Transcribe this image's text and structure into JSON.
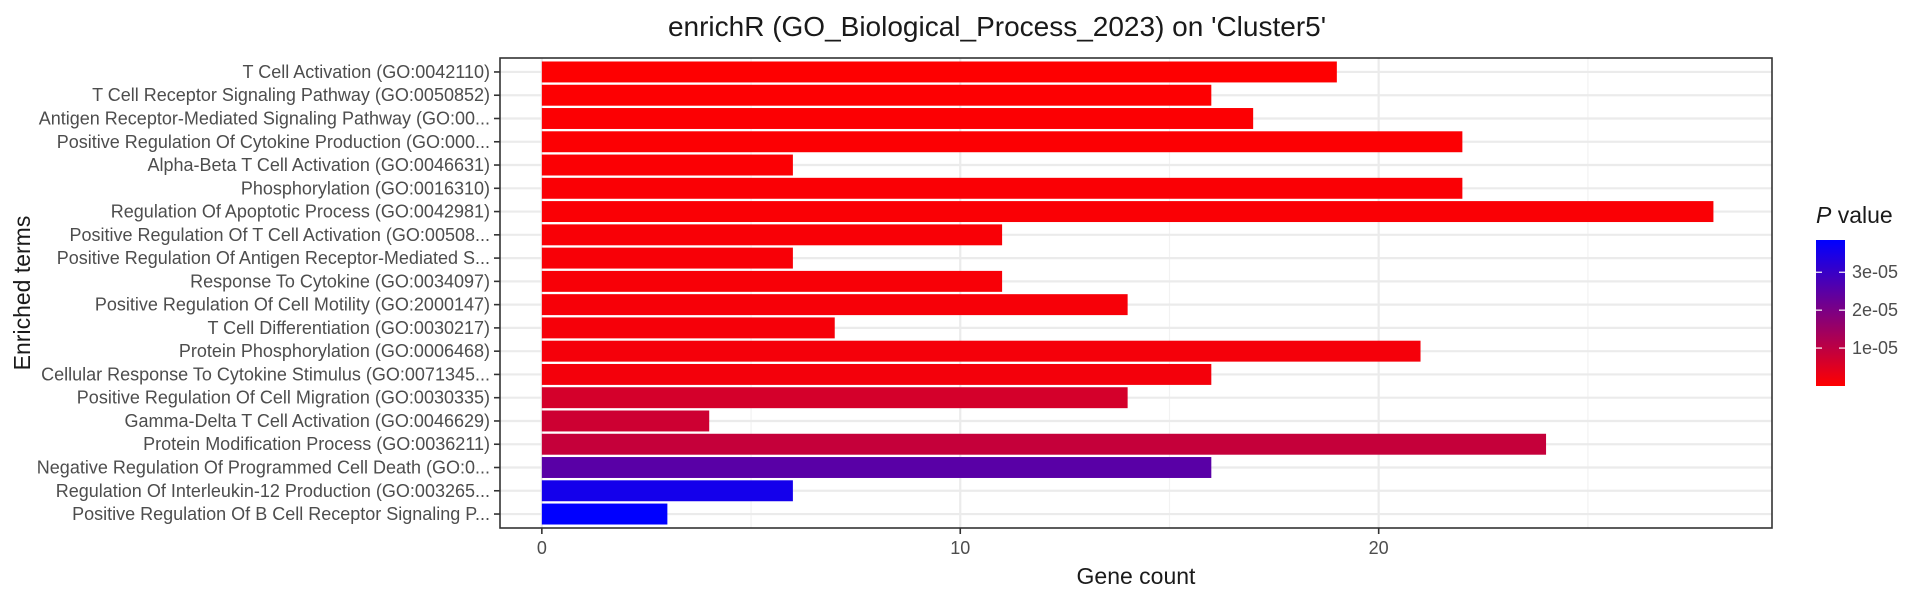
{
  "chart_data": {
    "type": "bar",
    "orientation": "horizontal",
    "title": "enrichR (GO_Biological_Process_2023) on 'Cluster5'",
    "xlabel": "Gene count",
    "ylabel": "Enriched terms",
    "xlim": [
      -1,
      29.4
    ],
    "xticks": [
      0,
      10,
      20
    ],
    "grid": true,
    "legend": {
      "title_italic": "P",
      "title_rest": " value",
      "placement": "right",
      "low_color": "#ff0000",
      "high_color": "#0000ff",
      "range": [
        0,
        3.85e-05
      ],
      "ticks": [
        {
          "value": 1e-05,
          "label": "1e-05"
        },
        {
          "value": 2e-05,
          "label": "2e-05"
        },
        {
          "value": 3e-05,
          "label": "3e-05"
        }
      ]
    },
    "bars": [
      {
        "term": "T Cell Activation (GO:0042110)",
        "count": 19,
        "p_value": 2e-07
      },
      {
        "term": "T Cell Receptor Signaling Pathway (GO:0050852)",
        "count": 16,
        "p_value": 3e-07
      },
      {
        "term": "Antigen Receptor-Mediated Signaling Pathway (GO:00...",
        "count": 17,
        "p_value": 4e-07
      },
      {
        "term": "Positive Regulation Of Cytokine Production (GO:000...",
        "count": 22,
        "p_value": 5e-07
      },
      {
        "term": "Alpha-Beta T Cell Activation (GO:0046631)",
        "count": 6,
        "p_value": 6e-07
      },
      {
        "term": "Phosphorylation (GO:0016310)",
        "count": 22,
        "p_value": 7e-07
      },
      {
        "term": "Regulation Of Apoptotic Process (GO:0042981)",
        "count": 28,
        "p_value": 8e-07
      },
      {
        "term": "Positive Regulation Of T Cell Activation (GO:00508...",
        "count": 11,
        "p_value": 9e-07
      },
      {
        "term": "Positive Regulation Of Antigen Receptor-Mediated S...",
        "count": 6,
        "p_value": 1e-06
      },
      {
        "term": "Response To Cytokine (GO:0034097)",
        "count": 11,
        "p_value": 1.1e-06
      },
      {
        "term": "Positive Regulation Of Cell Motility (GO:2000147)",
        "count": 14,
        "p_value": 1.2e-06
      },
      {
        "term": "T Cell Differentiation (GO:0030217)",
        "count": 7,
        "p_value": 1.3e-06
      },
      {
        "term": "Protein Phosphorylation (GO:0006468)",
        "count": 21,
        "p_value": 1.5e-06
      },
      {
        "term": "Cellular Response To Cytokine Stimulus (GO:0071345...",
        "count": 16,
        "p_value": 1.7e-06
      },
      {
        "term": "Positive Regulation Of Cell Migration (GO:0030335)",
        "count": 14,
        "p_value": 6.5e-06
      },
      {
        "term": "Gamma-Delta T Cell Activation (GO:0046629)",
        "count": 4,
        "p_value": 7.5e-06
      },
      {
        "term": "Protein Modification Process (GO:0036211)",
        "count": 24,
        "p_value": 8.8e-06
      },
      {
        "term": "Negative Regulation Of Programmed Cell Death (GO:0...",
        "count": 16,
        "p_value": 2.5e-05
      },
      {
        "term": "Regulation Of Interleukin-12 Production (GO:003265...",
        "count": 6,
        "p_value": 3.55e-05
      },
      {
        "term": "Positive Regulation Of B Cell Receptor Signaling P...",
        "count": 3,
        "p_value": 3.85e-05
      }
    ]
  }
}
